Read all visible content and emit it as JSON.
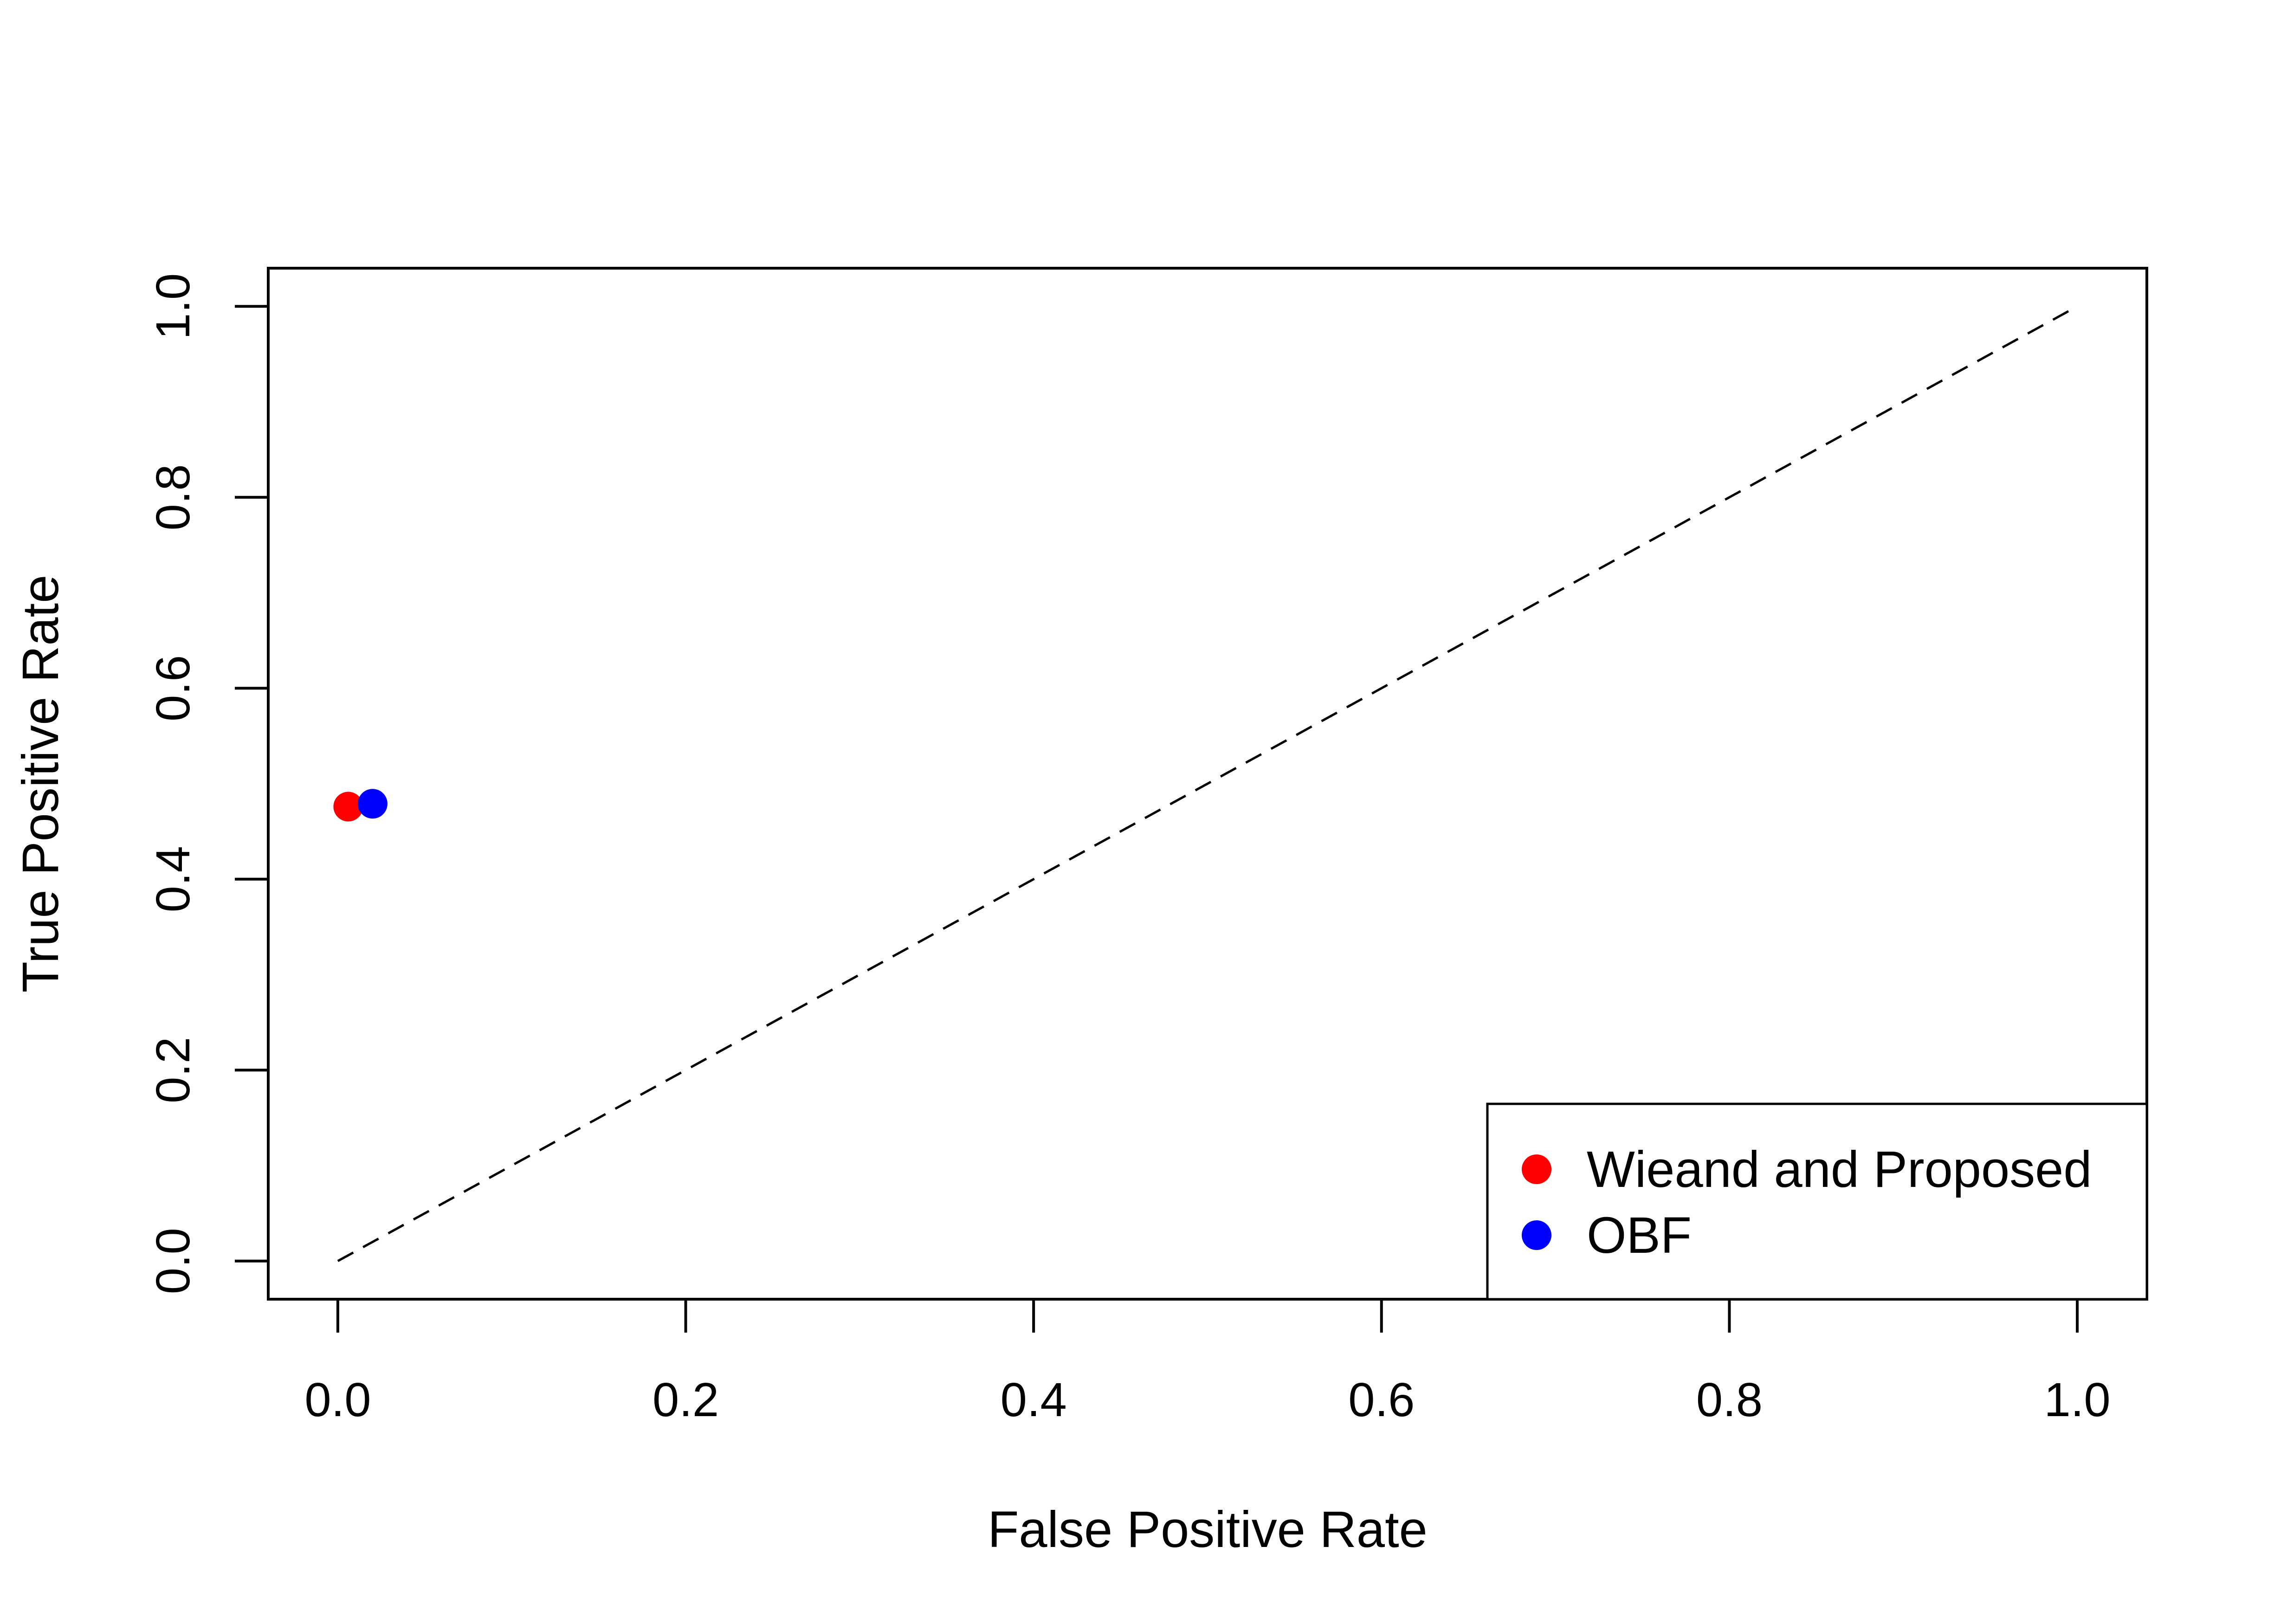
{
  "chart_data": {
    "type": "scatter",
    "title": "",
    "xlabel": "False Positive Rate",
    "ylabel": "True Positive Rate",
    "xlim": [
      -0.04,
      1.04
    ],
    "ylim": [
      -0.04,
      1.04
    ],
    "x_ticks": [
      "0.0",
      "0.2",
      "0.4",
      "0.6",
      "0.8",
      "1.0"
    ],
    "y_ticks": [
      "0.0",
      "0.2",
      "0.4",
      "0.6",
      "0.8",
      "1.0"
    ],
    "grid": false,
    "legend_position": "bottom-right",
    "series": [
      {
        "name": "Wieand and Proposed",
        "color": "#FF0000",
        "points": [
          {
            "x": 0.006,
            "y": 0.476
          }
        ]
      },
      {
        "name": "OBF",
        "color": "#0000FF",
        "points": [
          {
            "x": 0.02,
            "y": 0.479
          }
        ]
      }
    ],
    "reference_line": {
      "style": "dashed",
      "color": "#000000",
      "from": [
        0,
        0
      ],
      "to": [
        1,
        1
      ]
    }
  }
}
